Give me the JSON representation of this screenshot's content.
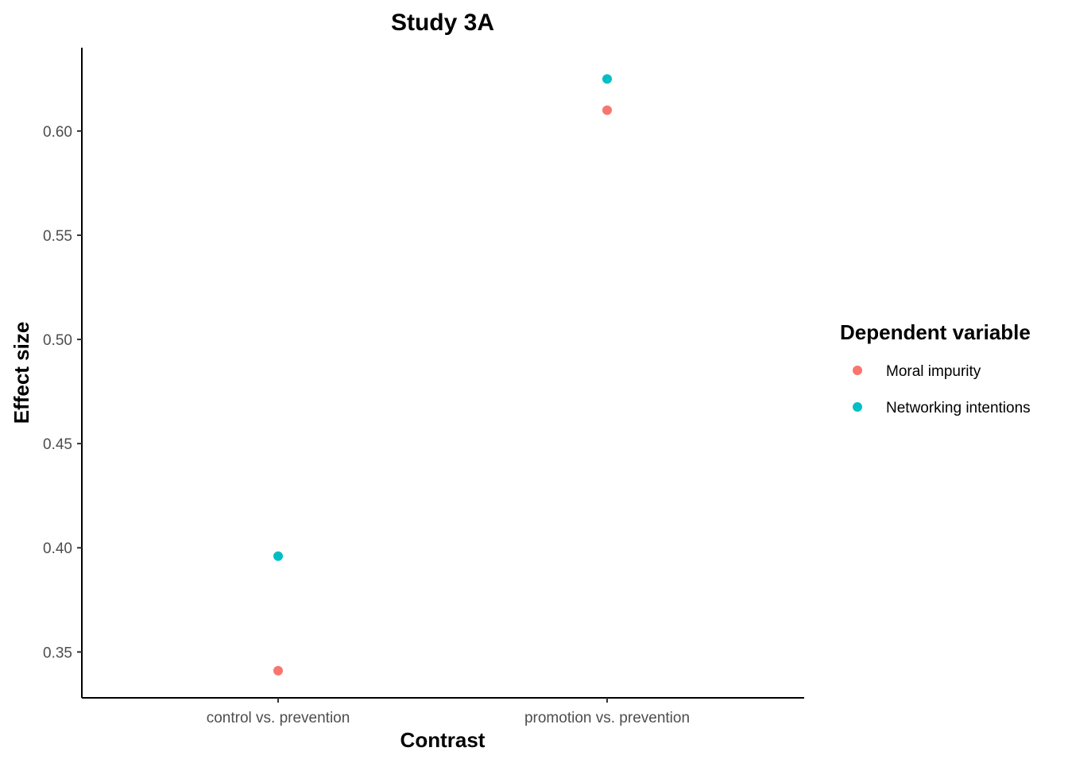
{
  "chart_data": {
    "type": "scatter",
    "title": "Study 3A",
    "xlabel": "Contrast",
    "ylabel": "Effect size",
    "categories": [
      "control vs. prevention",
      "promotion vs. prevention"
    ],
    "yticks": [
      0.35,
      0.4,
      0.45,
      0.5,
      0.55,
      0.6
    ],
    "ytick_labels": [
      "0.35",
      "0.40",
      "0.45",
      "0.50",
      "0.55",
      "0.60"
    ],
    "ylim": [
      0.328,
      0.64
    ],
    "grid": false,
    "legend": {
      "title": "Dependent variable",
      "position": "right"
    },
    "series": [
      {
        "name": "Moral impurity",
        "color": "#F8766D",
        "values": [
          0.341,
          0.61
        ]
      },
      {
        "name": "Networking intentions",
        "color": "#00BFC4",
        "values": [
          0.396,
          0.625
        ]
      }
    ]
  }
}
